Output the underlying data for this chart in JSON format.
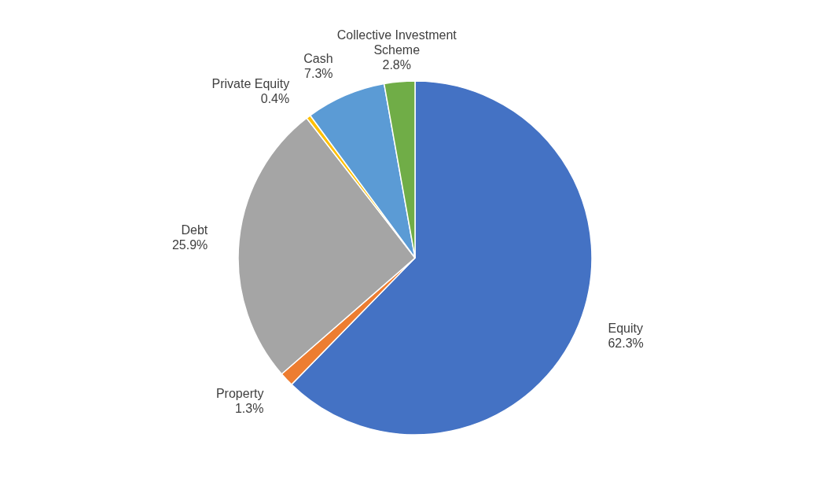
{
  "chart_data": {
    "type": "pie",
    "categories": [
      "Equity",
      "Property",
      "Debt",
      "Private Equity",
      "Cash",
      "Collective Investment Scheme"
    ],
    "values": [
      62.3,
      1.3,
      25.9,
      0.4,
      7.3,
      2.8
    ],
    "colors": [
      "#4472c4",
      "#ed7d31",
      "#a5a5a5",
      "#ffc000",
      "#5b9bd5",
      "#70ad47"
    ],
    "value_labels": [
      "62.3%",
      "1.3%",
      "25.9%",
      "0.4%",
      "7.3%",
      "2.8%"
    ]
  }
}
